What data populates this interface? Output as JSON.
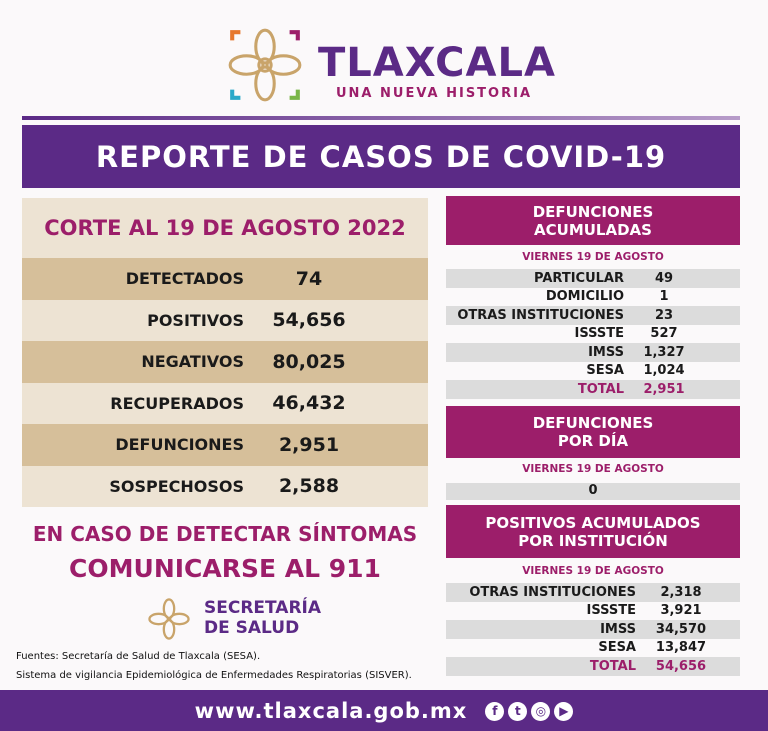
{
  "header": {
    "brand": "TLAXCALA",
    "subtitle": "UNA NUEVA HISTORIA"
  },
  "title": "REPORTE DE CASOS DE COVID-19",
  "summary": {
    "corte": "CORTE AL 19 DE AGOSTO 2022",
    "rows": [
      {
        "label": "DETECTADOS",
        "value": "74"
      },
      {
        "label": "POSITIVOS",
        "value": "54,656"
      },
      {
        "label": "NEGATIVOS",
        "value": "80,025"
      },
      {
        "label": "RECUPERADOS",
        "value": "46,432"
      },
      {
        "label": "DEFUNCIONES",
        "value": "2,951"
      },
      {
        "label": "SOSPECHOSOS",
        "value": "2,588"
      }
    ]
  },
  "call": {
    "line1": "EN CASO DE DETECTAR SÍNTOMAS",
    "line2": "COMUNICARSE AL 911"
  },
  "secretaria": {
    "line1": "SECRETARÍA",
    "line2": "DE SALUD"
  },
  "sources": {
    "line1": "Fuentes:  Secretaría de Salud de Tlaxcala (SESA).",
    "line2": "Sistema de vigilancia Epidemiológica de Enfermedades Respiratorias (SISVER)."
  },
  "defunciones_acumuladas": {
    "title1": "DEFUNCIONES",
    "title2": "ACUMULADAS",
    "date": "VIERNES 19 DE AGOSTO",
    "rows": [
      {
        "label": "PARTICULAR",
        "value": "49"
      },
      {
        "label": "DOMICILIO",
        "value": "1"
      },
      {
        "label": "OTRAS INSTITUCIONES",
        "value": "23"
      },
      {
        "label": "ISSSTE",
        "value": "527"
      },
      {
        "label": "IMSS",
        "value": "1,327"
      },
      {
        "label": "SESA",
        "value": "1,024"
      },
      {
        "label": "TOTAL",
        "value": "2,951"
      }
    ]
  },
  "defunciones_dia": {
    "title1": "DEFUNCIONES",
    "title2": "POR DÍA",
    "date": "VIERNES 19 DE AGOSTO",
    "value": "0"
  },
  "positivos_institucion": {
    "title1": "POSITIVOS ACUMULADOS",
    "title2": "POR INSTITUCIÓN",
    "date": "VIERNES 19 DE AGOSTO",
    "rows": [
      {
        "label": "OTRAS INSTITUCIONES",
        "value": "2,318"
      },
      {
        "label": "ISSSTE",
        "value": "3,921"
      },
      {
        "label": "IMSS",
        "value": "34,570"
      },
      {
        "label": "SESA",
        "value": "13,847"
      },
      {
        "label": "TOTAL",
        "value": "54,656"
      }
    ]
  },
  "footer": {
    "url": "www.tlaxcala.gob.mx",
    "social": [
      "facebook-icon",
      "twitter-icon",
      "instagram-icon",
      "youtube-icon"
    ]
  },
  "colors": {
    "purple": "#5b2a86",
    "magenta": "#9c1e6a",
    "tan": "#d6bf9a",
    "light_tan": "#ede3d3",
    "gray": "#dcdcdc"
  }
}
